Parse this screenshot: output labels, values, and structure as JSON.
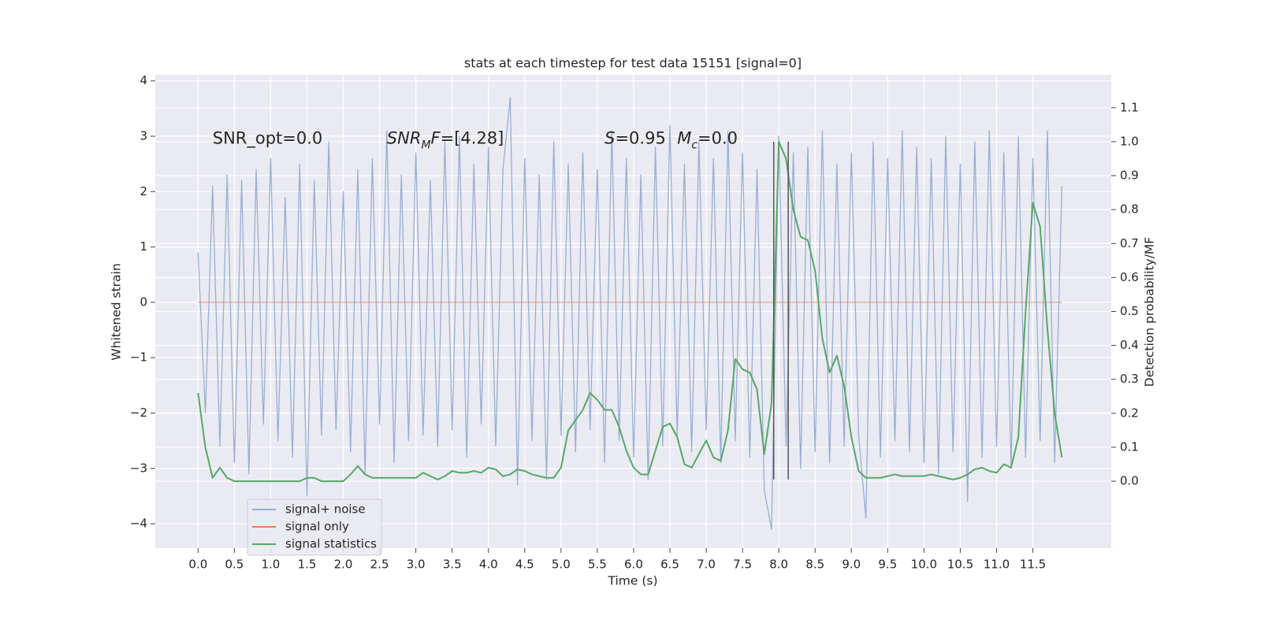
{
  "chart_data": {
    "type": "line",
    "title": "stats at each timestep for test data 15151 [signal=0]",
    "xlabel": "Time (s)",
    "ylabel": "Whitened strain",
    "y2label": "Detection probability/MF",
    "grid": true,
    "legend": "lower left",
    "background": "#eaeaf2",
    "xlim": [
      -0.59,
      12.58
    ],
    "ylim": [
      -4.44,
      4.11
    ],
    "y2lim": [
      -0.197,
      1.197
    ],
    "xticks": [
      {
        "value": 0,
        "label": "0.0"
      },
      0.5,
      {
        "value": 1,
        "label": "1.0"
      },
      1.5,
      {
        "value": 2,
        "label": "2.0"
      },
      2.5,
      {
        "value": 3,
        "label": "3.0"
      },
      3.5,
      {
        "value": 4,
        "label": "4.0"
      },
      4.5,
      {
        "value": 5,
        "label": "5.0"
      },
      5.5,
      {
        "value": 6,
        "label": "6.0"
      },
      6.5,
      {
        "value": 7,
        "label": "7.0"
      },
      7.5,
      {
        "value": 8,
        "label": "8.0"
      },
      8.5,
      {
        "value": 9,
        "label": "9.0"
      },
      9.5,
      {
        "value": 10,
        "label": "10.0"
      },
      10.5,
      {
        "value": 11,
        "label": "11.0"
      },
      11.5
    ],
    "yticks": [
      {
        "value": -4,
        "label": "−4"
      },
      {
        "value": -3,
        "label": "−3"
      },
      {
        "value": -2,
        "label": "−2"
      },
      {
        "value": -1,
        "label": "−1"
      },
      0,
      1,
      2,
      3,
      4
    ],
    "y2ticks": [
      {
        "value": 0,
        "label": "0.0"
      },
      0.1,
      0.2,
      0.3,
      0.4,
      0.5,
      0.6,
      0.7,
      0.8,
      0.9,
      {
        "value": 1,
        "label": "1.0"
      },
      1.1
    ],
    "x": [
      0.0,
      0.1,
      0.2,
      0.3,
      0.4,
      0.5,
      0.6,
      0.7,
      0.8,
      0.9,
      1.0,
      1.1,
      1.2,
      1.3,
      1.4,
      1.5,
      1.6,
      1.7,
      1.8,
      1.9,
      2.0,
      2.1,
      2.2,
      2.3,
      2.4,
      2.5,
      2.6,
      2.7,
      2.8,
      2.9,
      3.0,
      3.1,
      3.2,
      3.3,
      3.4,
      3.5,
      3.6,
      3.7,
      3.8,
      3.9,
      4.0,
      4.1,
      4.2,
      4.3,
      4.4,
      4.5,
      4.6,
      4.7,
      4.8,
      4.9,
      5.0,
      5.1,
      5.2,
      5.3,
      5.4,
      5.5,
      5.6,
      5.7,
      5.8,
      5.9,
      6.0,
      6.1,
      6.2,
      6.3,
      6.4,
      6.5,
      6.6,
      6.7,
      6.8,
      6.9,
      7.0,
      7.1,
      7.2,
      7.3,
      7.4,
      7.5,
      7.6,
      7.7,
      7.8,
      7.9,
      8.0,
      8.1,
      8.2,
      8.3,
      8.4,
      8.5,
      8.6,
      8.7,
      8.8,
      8.9,
      9.0,
      9.1,
      9.2,
      9.3,
      9.4,
      9.5,
      9.6,
      9.7,
      9.8,
      9.9,
      10.0,
      10.1,
      10.2,
      10.3,
      10.4,
      10.5,
      10.6,
      10.7,
      10.8,
      10.9,
      11.0,
      11.1,
      11.2,
      11.3,
      11.4,
      11.5,
      11.6,
      11.7,
      11.8,
      11.9
    ],
    "series": [
      {
        "name": "signal+ noise",
        "color": "#9aaed3",
        "axis": "y",
        "values": [
          0.9,
          -2.0,
          2.1,
          -2.6,
          2.3,
          -2.9,
          2.2,
          -3.1,
          2.4,
          -2.2,
          2.6,
          -2.5,
          1.9,
          -2.8,
          2.5,
          -3.5,
          2.2,
          -2.4,
          2.9,
          -2.3,
          2.0,
          -2.7,
          2.4,
          -3.1,
          2.6,
          -2.2,
          3.1,
          -2.9,
          2.3,
          -2.5,
          2.7,
          -2.4,
          2.2,
          -2.6,
          2.9,
          -2.3,
          3.0,
          -2.8,
          2.5,
          -2.2,
          2.8,
          -2.6,
          2.4,
          3.7,
          -3.3,
          2.6,
          -2.5,
          2.3,
          -3.2,
          2.9,
          -2.4,
          2.5,
          -2.7,
          2.7,
          -2.3,
          2.4,
          -2.9,
          3.1,
          -2.5,
          2.6,
          -2.8,
          2.3,
          -3.2,
          2.8,
          -2.6,
          3.2,
          -2.4,
          2.5,
          -2.7,
          2.9,
          -2.3,
          2.6,
          -2.9,
          3.1,
          -2.5,
          2.7,
          -2.8,
          2.4,
          -3.4,
          -4.1,
          3.0,
          -2.6,
          2.7,
          -3.0,
          2.8,
          -2.7,
          3.1,
          -2.9,
          2.5,
          -2.6,
          2.7,
          -2.4,
          -3.9,
          2.9,
          -2.8,
          2.6,
          -2.5,
          3.1,
          -2.7,
          2.8,
          -2.9,
          2.6,
          -3.1,
          3.0,
          -2.7,
          2.5,
          -3.6,
          2.9,
          -2.8,
          3.1,
          -2.6,
          2.7,
          -3.0,
          3.0,
          -2.8,
          2.6,
          -2.5,
          3.1,
          -2.9,
          2.1
        ]
      },
      {
        "name": "signal only",
        "color": "#dd8452",
        "axis": "y",
        "values": [
          0,
          0,
          0,
          0,
          0,
          0,
          0,
          0,
          0,
          0,
          0,
          0,
          0,
          0,
          0,
          0,
          0,
          0,
          0,
          0,
          0,
          0,
          0,
          0,
          0,
          0,
          0,
          0,
          0,
          0,
          0,
          0,
          0,
          0,
          0,
          0,
          0,
          0,
          0,
          0,
          0,
          0,
          0,
          0,
          0,
          0,
          0,
          0,
          0,
          0,
          0,
          0,
          0,
          0,
          0,
          0,
          0,
          0,
          0,
          0,
          0,
          0,
          0,
          0,
          0,
          0,
          0,
          0,
          0,
          0,
          0,
          0,
          0,
          0,
          0,
          0,
          0,
          0,
          0,
          0,
          0,
          0,
          0,
          0,
          0,
          0,
          0,
          0,
          0,
          0,
          0,
          0,
          0,
          0,
          0,
          0,
          0,
          0,
          0,
          0,
          0,
          0,
          0,
          0,
          0,
          0,
          0,
          0,
          0,
          0,
          0,
          0,
          0,
          0,
          0,
          0,
          0,
          0,
          0,
          0
        ]
      },
      {
        "name": "signal statistics",
        "color": "#55a868",
        "axis": "y2",
        "values": [
          0.26,
          0.1,
          0.01,
          0.04,
          0.01,
          0.0,
          0.0,
          0.0,
          0.0,
          0.0,
          0.0,
          0.0,
          0.0,
          0.0,
          0.0,
          0.01,
          0.01,
          0.0,
          0.0,
          0.0,
          0.0,
          0.02,
          0.045,
          0.02,
          0.01,
          0.01,
          0.01,
          0.01,
          0.01,
          0.01,
          0.01,
          0.025,
          0.015,
          0.005,
          0.015,
          0.03,
          0.025,
          0.025,
          0.03,
          0.025,
          0.04,
          0.035,
          0.015,
          0.02,
          0.035,
          0.03,
          0.02,
          0.015,
          0.01,
          0.01,
          0.04,
          0.15,
          0.18,
          0.21,
          0.26,
          0.24,
          0.21,
          0.21,
          0.16,
          0.09,
          0.04,
          0.02,
          0.02,
          0.09,
          0.16,
          0.17,
          0.13,
          0.05,
          0.04,
          0.08,
          0.12,
          0.07,
          0.06,
          0.15,
          0.36,
          0.33,
          0.32,
          0.27,
          0.08,
          0.23,
          1.0,
          0.95,
          0.8,
          0.72,
          0.71,
          0.62,
          0.42,
          0.32,
          0.37,
          0.28,
          0.13,
          0.03,
          0.01,
          0.01,
          0.01,
          0.015,
          0.02,
          0.015,
          0.015,
          0.015,
          0.015,
          0.02,
          0.015,
          0.01,
          0.005,
          0.01,
          0.02,
          0.035,
          0.04,
          0.03,
          0.025,
          0.05,
          0.04,
          0.13,
          0.5,
          0.82,
          0.75,
          0.45,
          0.2,
          0.07
        ]
      }
    ],
    "vlines": [
      {
        "x": 7.93,
        "ymin": -3.2,
        "ymax": 2.9,
        "color": "#555555"
      },
      {
        "x": 8.13,
        "ymin": -3.2,
        "ymax": 2.9,
        "color": "#555555"
      }
    ],
    "annotations": [
      {
        "x": 0.2,
        "y": 2.95,
        "parts": [
          {
            "text": "SNR_opt=0.0"
          }
        ]
      },
      {
        "x": 2.6,
        "y": 2.95,
        "parts": [
          {
            "text": "SNR",
            "italic": true
          },
          {
            "text": "M",
            "italic": true,
            "sub": true
          },
          {
            "text": "F",
            "italic": true
          },
          {
            "text": "=[4.28]"
          }
        ]
      },
      {
        "x": 5.6,
        "y": 2.95,
        "parts": [
          {
            "text": "S",
            "italic": true
          },
          {
            "text": "=0.95"
          }
        ]
      },
      {
        "x": 6.6,
        "y": 2.95,
        "parts": [
          {
            "text": "M",
            "italic": true
          },
          {
            "text": "c",
            "italic": true,
            "sub": true
          },
          {
            "text": "=0.0"
          }
        ]
      }
    ]
  }
}
